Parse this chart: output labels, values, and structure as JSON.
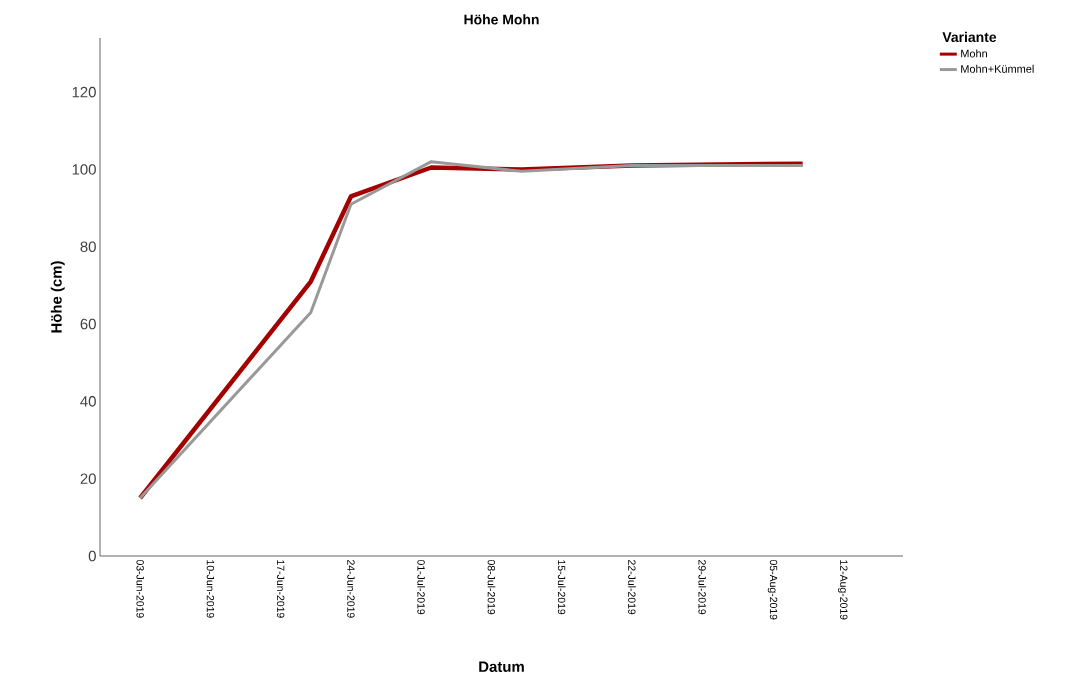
{
  "chart_data": {
    "type": "line",
    "title": "Höhe Mohn",
    "xlabel": "Datum",
    "ylabel": "Höhe (cm)",
    "legend_title": "Variante",
    "x": [
      "2019-06-03",
      "2019-06-20",
      "2019-06-24",
      "2019-07-02",
      "2019-07-11",
      "2019-07-22",
      "2019-08-08"
    ],
    "series": [
      {
        "name": "Mohn",
        "color": "#a50000",
        "values": [
          15,
          71,
          93,
          100.5,
          100,
          101,
          101.5
        ]
      },
      {
        "name": "Mohn+Kümmel",
        "color": "#999999",
        "values": [
          15,
          63,
          91,
          102,
          99.5,
          101,
          101
        ]
      }
    ],
    "xlim": [
      "2019-05-30",
      "2019-08-18"
    ],
    "xticks": [
      {
        "value": "2019-06-03",
        "label": "03-Jun-2019"
      },
      {
        "value": "2019-06-10",
        "label": "10-Jun-2019"
      },
      {
        "value": "2019-06-17",
        "label": "17-Jun-2019"
      },
      {
        "value": "2019-06-24",
        "label": "24-Jun-2019"
      },
      {
        "value": "2019-07-01",
        "label": "01-Jul-2019"
      },
      {
        "value": "2019-07-08",
        "label": "08-Jul-2019"
      },
      {
        "value": "2019-07-15",
        "label": "15-Jul-2019"
      },
      {
        "value": "2019-07-22",
        "label": "22-Jul-2019"
      },
      {
        "value": "2019-07-29",
        "label": "29-Jul-2019"
      },
      {
        "value": "2019-08-05",
        "label": "05-Aug-2019"
      },
      {
        "value": "2019-08-12",
        "label": "12-Aug-2019"
      }
    ],
    "ylim": [
      0,
      134
    ],
    "yticks": [
      0,
      20,
      40,
      60,
      80,
      100,
      120
    ],
    "legend": "top right",
    "grid": false,
    "marker": "none",
    "line_style": "solid"
  }
}
